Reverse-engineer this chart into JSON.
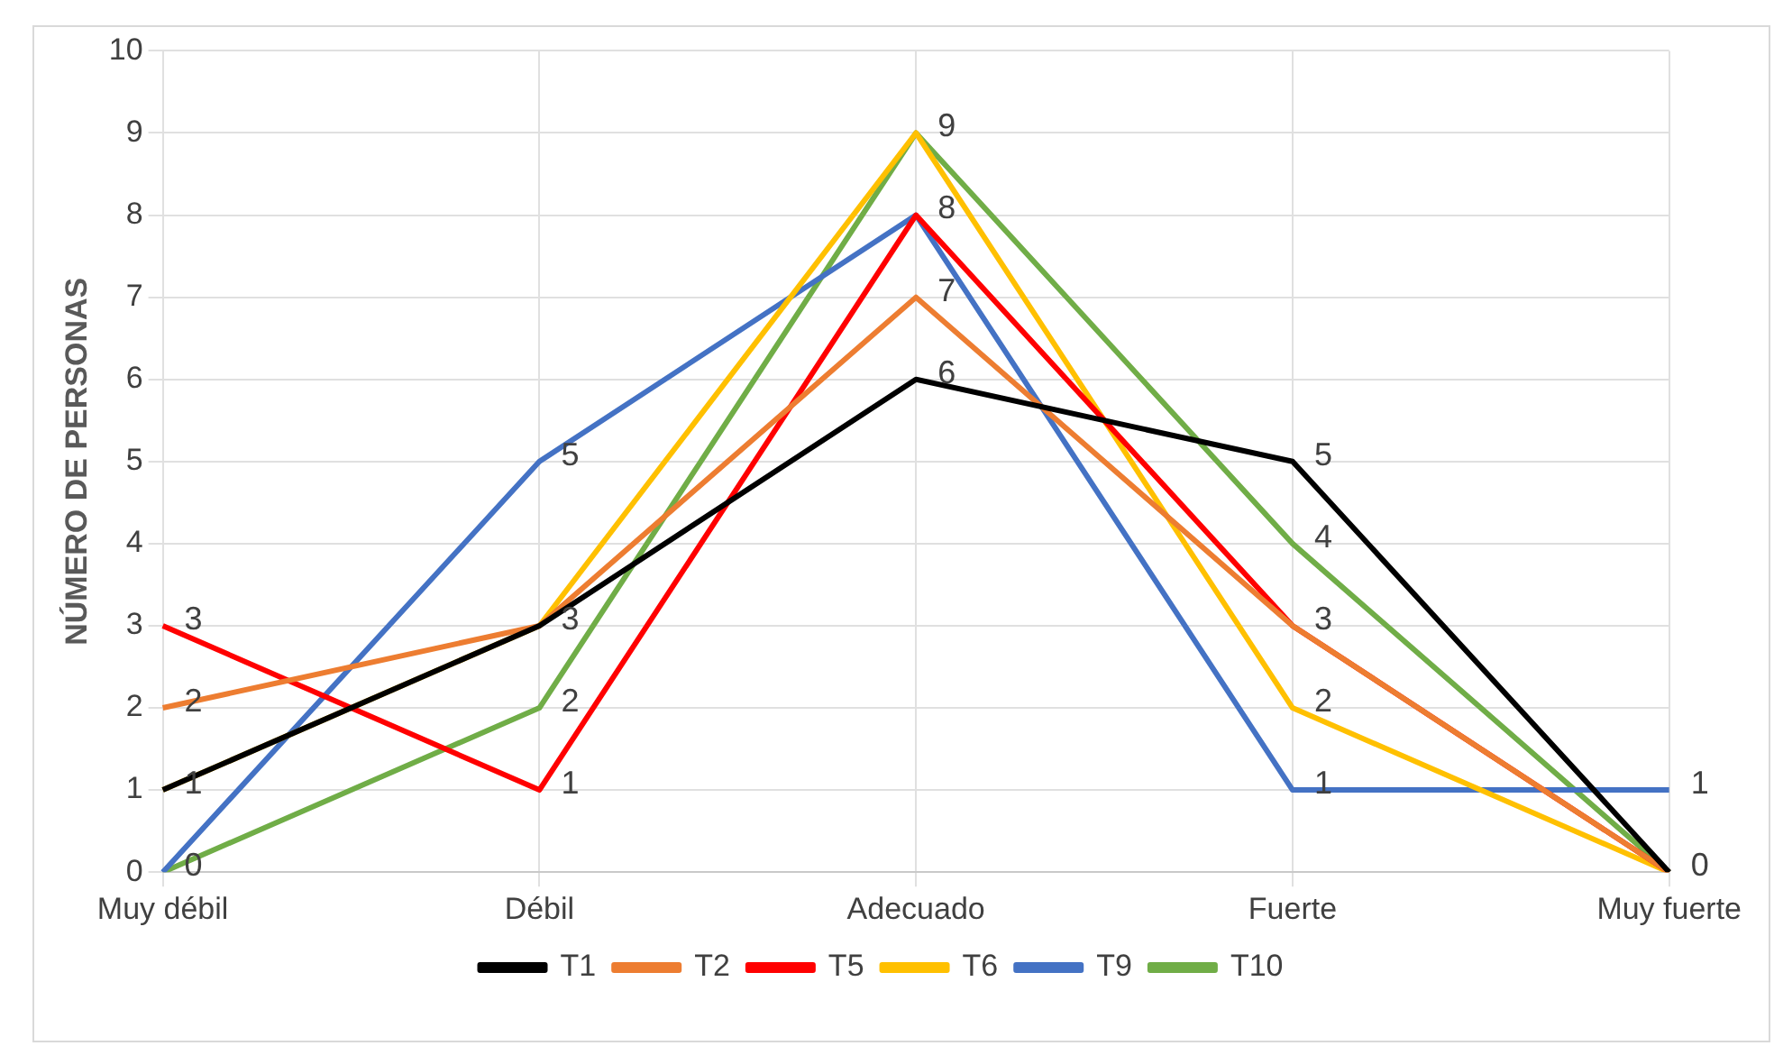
{
  "chart_data": {
    "type": "line",
    "ylabel": "NÚMERO DE PERSONAS",
    "categories": [
      "Muy débil",
      "Débil",
      "Adecuado",
      "Fuerte",
      "Muy fuerte"
    ],
    "series": [
      {
        "name": "T1",
        "color": "#000000",
        "values": [
          1,
          3,
          6,
          5,
          0
        ],
        "value_labels": [
          "1",
          "3",
          "6",
          "5",
          "0"
        ]
      },
      {
        "name": "T2",
        "color": "#ed7d31",
        "values": [
          2,
          3,
          7,
          3,
          0
        ],
        "value_labels": [
          "2",
          null,
          "7",
          "3",
          null
        ]
      },
      {
        "name": "T5",
        "color": "#ff0000",
        "values": [
          3,
          1,
          8,
          3,
          0
        ],
        "value_labels": [
          "3",
          "1",
          "8",
          null,
          null
        ]
      },
      {
        "name": "T6",
        "color": "#ffc000",
        "values": [
          1,
          3,
          9,
          2,
          0
        ],
        "value_labels": [
          null,
          null,
          "9",
          "2",
          null
        ]
      },
      {
        "name": "T9",
        "color": "#4472c4",
        "values": [
          0,
          5,
          8,
          1,
          1
        ],
        "value_labels": [
          "0",
          "5",
          null,
          "1",
          "1"
        ]
      },
      {
        "name": "T10",
        "color": "#70ad47",
        "values": [
          0,
          2,
          9,
          4,
          0
        ],
        "value_labels": [
          null,
          "2",
          null,
          "4",
          null
        ]
      }
    ],
    "ylim": [
      0,
      10
    ],
    "yticks": [
      0,
      1,
      2,
      3,
      4,
      5,
      6,
      7,
      8,
      9,
      10
    ],
    "grid": true,
    "legend": "bottom",
    "marker": "none",
    "line_style": "solid"
  }
}
